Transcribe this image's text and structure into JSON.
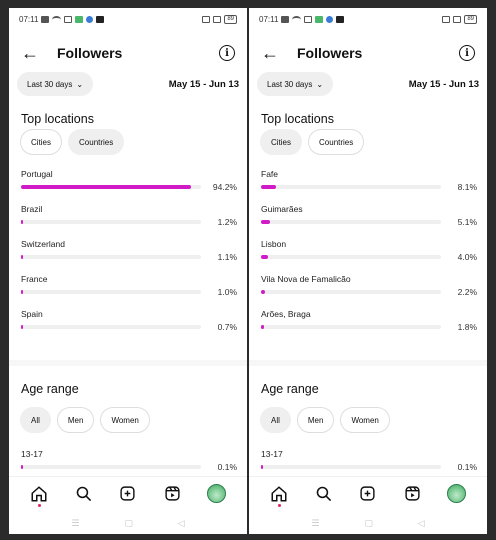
{
  "screens": [
    {
      "status": {
        "time": "07:11",
        "battery": "89"
      },
      "header": {
        "title": "Followers"
      },
      "filter": {
        "period_label": "Last 30 days",
        "date_range": "May 15 - Jun 13"
      },
      "top_locations": {
        "title": "Top locations",
        "tabs": [
          {
            "label": "Cities",
            "active": false
          },
          {
            "label": "Countries",
            "active": true
          }
        ],
        "items": [
          {
            "name": "Portugal",
            "percent_label": "94.2%",
            "value": 94.2
          },
          {
            "name": "Brazil",
            "percent_label": "1.2%",
            "value": 1.2
          },
          {
            "name": "Switzerland",
            "percent_label": "1.1%",
            "value": 1.1
          },
          {
            "name": "France",
            "percent_label": "1.0%",
            "value": 1.0
          },
          {
            "name": "Spain",
            "percent_label": "0.7%",
            "value": 0.7
          }
        ]
      },
      "age_range": {
        "title": "Age range",
        "tabs": [
          {
            "label": "All",
            "active": true
          },
          {
            "label": "Men",
            "active": false
          },
          {
            "label": "Women",
            "active": false
          }
        ],
        "items": [
          {
            "name": "13-17",
            "percent_label": "0.1%",
            "value": 0.1
          }
        ]
      }
    },
    {
      "status": {
        "time": "07:11",
        "battery": "89"
      },
      "header": {
        "title": "Followers"
      },
      "filter": {
        "period_label": "Last 30 days",
        "date_range": "May 15 - Jun 13"
      },
      "top_locations": {
        "title": "Top locations",
        "tabs": [
          {
            "label": "Cities",
            "active": true
          },
          {
            "label": "Countries",
            "active": false
          }
        ],
        "items": [
          {
            "name": "Fafe",
            "percent_label": "8.1%",
            "value": 8.1
          },
          {
            "name": "Guimarães",
            "percent_label": "5.1%",
            "value": 5.1
          },
          {
            "name": "Lisbon",
            "percent_label": "4.0%",
            "value": 4.0
          },
          {
            "name": "Vila Nova de Famalicão",
            "percent_label": "2.2%",
            "value": 2.2
          },
          {
            "name": "Arões, Braga",
            "percent_label": "1.8%",
            "value": 1.8
          }
        ]
      },
      "age_range": {
        "title": "Age range",
        "tabs": [
          {
            "label": "All",
            "active": true
          },
          {
            "label": "Men",
            "active": false
          },
          {
            "label": "Women",
            "active": false
          }
        ],
        "items": [
          {
            "name": "13-17",
            "percent_label": "0.1%",
            "value": 0.1
          }
        ]
      }
    }
  ],
  "colors": {
    "bar": "#d11bc7",
    "track": "#efefef",
    "background": "#2b2b2b"
  },
  "icons": {
    "back": "arrow-left-icon",
    "info": "info-icon",
    "nav": [
      "home-icon",
      "search-icon",
      "create-icon",
      "reels-icon",
      "profile-avatar"
    ],
    "system_nav": [
      "menu-icon",
      "home-square-icon",
      "back-triangle-icon"
    ]
  }
}
